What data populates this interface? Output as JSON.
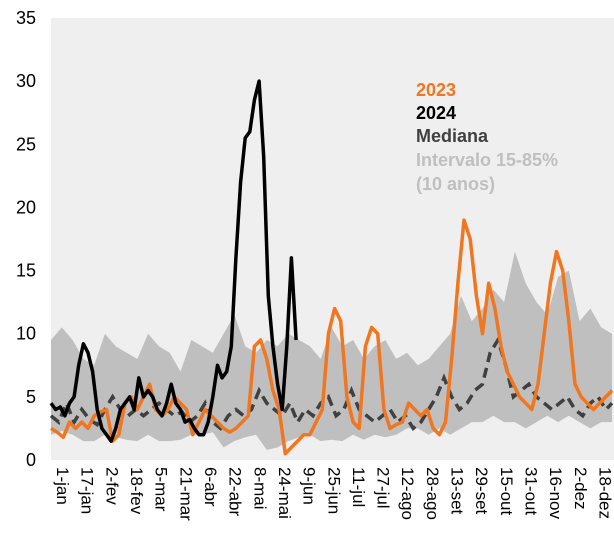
{
  "chart_data": {
    "type": "line",
    "title": "",
    "xlabel": "",
    "ylabel": "",
    "ylim": [
      0,
      35
    ],
    "yticks": [
      0,
      5,
      10,
      15,
      20,
      25,
      30,
      35
    ],
    "grid": false,
    "legend_position": "top-right",
    "x_tick_labels": [
      "1-jan",
      "17-jan",
      "2-fev",
      "18-fev",
      "5-mar",
      "21-mar",
      "6-abr",
      "22-abr",
      "8-mai",
      "24-mai",
      "9-jun",
      "25-jun",
      "11-jul",
      "27-jul",
      "12-ago",
      "28-ago",
      "13-set",
      "29-set",
      "15-out",
      "31-out",
      "16-nov",
      "2-dez",
      "18-dez"
    ],
    "legend": {
      "l2023": "2023",
      "l2024": "2024",
      "lmed": "Mediana",
      "lint1": "Intervalo 15-85%",
      "lint2": "(10 anos)"
    },
    "colors": {
      "s2023": "#f07620",
      "s2024": "#000000",
      "median": "#404040",
      "band": "#bfbfbf",
      "background": "#efefef"
    },
    "band": {
      "name": "Intervalo 15-85% (10 anos)",
      "x": [
        1,
        8,
        15,
        22,
        29,
        36,
        43,
        50,
        57,
        64,
        71,
        78,
        85,
        92,
        99,
        106,
        113,
        120,
        127,
        134,
        141,
        148,
        155,
        162,
        169,
        176,
        183,
        190,
        197,
        204,
        211,
        218,
        225,
        232,
        239,
        246,
        253,
        260,
        267,
        274,
        281,
        288,
        295,
        302,
        309,
        316,
        323,
        330,
        337,
        344,
        351,
        358,
        365
      ],
      "low": [
        2.0,
        2.3,
        2.0,
        1.5,
        1.5,
        2.0,
        1.8,
        1.6,
        1.5,
        2.0,
        1.5,
        1.5,
        1.6,
        2.0,
        2.0,
        2.2,
        1.0,
        1.5,
        1.8,
        2.0,
        0.8,
        1.0,
        1.5,
        1.8,
        2.0,
        1.5,
        1.6,
        1.5,
        2.0,
        1.6,
        2.0,
        1.8,
        2.0,
        2.5,
        2.5,
        2.0,
        2.5,
        2.0,
        2.5,
        3.0,
        3.0,
        3.5,
        3.0,
        3.0,
        2.5,
        3.0,
        3.5,
        3.0,
        3.5,
        3.0,
        2.5,
        3.0,
        3.0
      ],
      "high": [
        9.5,
        10.5,
        9.5,
        8.0,
        7.5,
        10.0,
        9.0,
        8.5,
        8.0,
        10.0,
        9.0,
        8.5,
        7.0,
        9.5,
        9.0,
        8.5,
        10.0,
        11.5,
        9.0,
        8.5,
        9.5,
        9.0,
        10.0,
        9.5,
        9.0,
        8.0,
        10.5,
        9.0,
        9.5,
        8.0,
        9.0,
        9.5,
        8.0,
        8.5,
        7.5,
        8.0,
        9.0,
        10.0,
        13.0,
        11.0,
        12.0,
        13.5,
        12.5,
        16.5,
        14.0,
        12.5,
        11.5,
        14.5,
        15.0,
        11.0,
        12.0,
        10.5,
        10.0
      ]
    },
    "series": [
      {
        "name": "2023",
        "x": [
          1,
          5,
          9,
          13,
          17,
          21,
          25,
          29,
          33,
          37,
          41,
          45,
          49,
          53,
          57,
          61,
          65,
          69,
          73,
          77,
          81,
          85,
          89,
          93,
          97,
          101,
          105,
          109,
          113,
          117,
          121,
          125,
          129,
          133,
          137,
          141,
          145,
          149,
          153,
          157,
          161,
          165,
          169,
          173,
          177,
          181,
          185,
          189,
          193,
          197,
          201,
          205,
          209,
          213,
          217,
          221,
          225,
          229,
          233,
          237,
          241,
          245,
          249,
          253,
          257,
          261,
          265,
          269,
          273,
          277,
          281,
          285,
          289,
          293,
          297,
          301,
          305,
          309,
          313,
          317,
          321,
          325,
          329,
          333,
          337,
          341,
          345,
          349,
          353,
          357,
          361,
          365
        ],
        "y": [
          2.5,
          2.2,
          1.8,
          3.0,
          2.5,
          3.0,
          2.5,
          3.5,
          3.8,
          4.0,
          1.5,
          2.0,
          4.5,
          5.0,
          4.0,
          5.0,
          6.0,
          4.0,
          3.5,
          4.0,
          5.0,
          4.5,
          4.0,
          2.0,
          3.0,
          4.0,
          3.5,
          3.0,
          2.5,
          2.2,
          2.5,
          3.0,
          3.5,
          9.0,
          9.5,
          8.0,
          5.5,
          4.0,
          0.5,
          1.0,
          1.5,
          2.0,
          2.0,
          3.0,
          4.0,
          10.0,
          12.0,
          11.0,
          5.0,
          3.0,
          2.5,
          9.0,
          10.5,
          10.0,
          4.0,
          2.5,
          2.8,
          3.0,
          4.5,
          4.0,
          3.5,
          4.0,
          2.5,
          2.0,
          3.0,
          8.0,
          14.0,
          19.0,
          17.5,
          13.0,
          10.0,
          14.0,
          12.0,
          9.0,
          7.0,
          6.0,
          5.0,
          4.5,
          4.0,
          6.0,
          10.0,
          14.0,
          16.5,
          15.0,
          11.0,
          6.0,
          5.0,
          4.5,
          4.0,
          4.5,
          5.0,
          5.5
        ]
      },
      {
        "name": "2024",
        "x": [
          1,
          4,
          7,
          10,
          13,
          16,
          19,
          22,
          25,
          28,
          31,
          34,
          37,
          40,
          43,
          46,
          49,
          52,
          55,
          58,
          61,
          64,
          67,
          70,
          73,
          76,
          79,
          82,
          85,
          88,
          91,
          94,
          97,
          100,
          103,
          106,
          109,
          112,
          115,
          118,
          121,
          124,
          127,
          130,
          133,
          136,
          139,
          142,
          145,
          148,
          151,
          154,
          157,
          160
        ],
        "y": [
          4.5,
          4.0,
          4.2,
          3.5,
          4.5,
          5.0,
          7.5,
          9.2,
          8.5,
          7.0,
          4.0,
          2.5,
          2.0,
          1.5,
          2.5,
          4.0,
          4.5,
          5.0,
          4.0,
          6.5,
          5.0,
          5.5,
          5.0,
          4.0,
          3.5,
          4.5,
          6.0,
          4.5,
          4.0,
          3.0,
          3.2,
          2.5,
          2.0,
          2.0,
          3.0,
          5.0,
          7.5,
          6.5,
          7.0,
          9.0,
          16.0,
          22.0,
          25.5,
          26.0,
          28.5,
          30.0,
          24.0,
          13.0,
          9.0,
          6.0,
          4.0,
          9.0,
          16.0,
          9.5
        ]
      },
      {
        "name": "Mediana",
        "x": [
          1,
          6,
          11,
          16,
          21,
          26,
          31,
          36,
          41,
          46,
          51,
          56,
          61,
          66,
          71,
          76,
          81,
          86,
          91,
          96,
          101,
          106,
          111,
          116,
          121,
          126,
          131,
          136,
          141,
          146,
          151,
          156,
          161,
          166,
          171,
          176,
          181,
          186,
          191,
          196,
          201,
          206,
          211,
          216,
          221,
          226,
          231,
          236,
          241,
          246,
          251,
          256,
          261,
          266,
          271,
          276,
          281,
          286,
          291,
          296,
          301,
          306,
          311,
          316,
          321,
          326,
          331,
          336,
          341,
          346,
          351,
          356,
          361,
          365
        ],
        "y": [
          3.5,
          3.0,
          4.5,
          3.0,
          4.0,
          3.2,
          2.8,
          4.0,
          5.0,
          4.0,
          3.5,
          4.0,
          3.5,
          4.0,
          4.5,
          4.0,
          3.5,
          3.8,
          3.0,
          3.5,
          4.5,
          3.0,
          2.5,
          3.5,
          4.0,
          3.5,
          4.0,
          5.5,
          4.5,
          4.0,
          3.5,
          4.5,
          3.0,
          4.0,
          3.5,
          4.5,
          5.0,
          3.5,
          4.0,
          5.5,
          4.0,
          3.5,
          3.0,
          3.5,
          4.0,
          3.0,
          3.5,
          2.5,
          3.0,
          4.0,
          5.0,
          6.5,
          5.0,
          4.0,
          4.5,
          5.5,
          6.0,
          8.5,
          9.5,
          7.5,
          5.0,
          5.5,
          6.0,
          5.0,
          4.5,
          4.0,
          4.5,
          5.0,
          4.0,
          3.5,
          4.5,
          5.0,
          4.0,
          4.5
        ]
      }
    ]
  }
}
